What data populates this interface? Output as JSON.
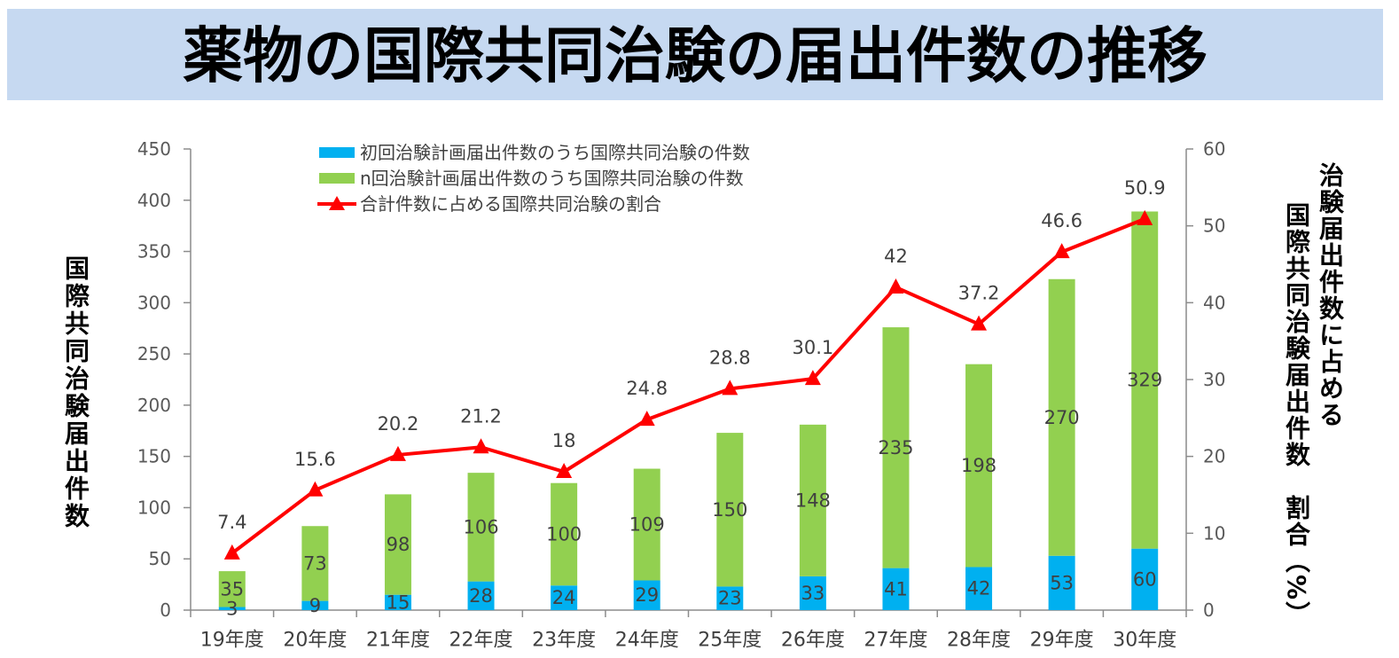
{
  "chart_data": {
    "type": "bar",
    "stacked": true,
    "title": "薬物の国際共同治験の届出件数の推移",
    "categories": [
      "19年度",
      "20年度",
      "21年度",
      "22年度",
      "23年度",
      "24年度",
      "25年度",
      "26年度",
      "27年度",
      "28年度",
      "29年度",
      "30年度"
    ],
    "series": [
      {
        "name": "初回治験計画届出件数のうち国際共同治験の件数",
        "type": "bar",
        "axis": "left",
        "color": "#00b0f0",
        "values": [
          3,
          9,
          15,
          28,
          24,
          29,
          23,
          33,
          41,
          42,
          53,
          60
        ]
      },
      {
        "name": "n回治験計画届出件数のうち国際共同治験の件数",
        "type": "bar",
        "axis": "left",
        "color": "#92d050",
        "values": [
          35,
          73,
          98,
          106,
          100,
          109,
          150,
          148,
          235,
          198,
          270,
          329
        ]
      },
      {
        "name": "合計件数に占める国際共同治験の割合",
        "type": "line",
        "axis": "right",
        "color": "#ff0000",
        "values": [
          7.4,
          15.6,
          20.2,
          21.2,
          18,
          24.8,
          28.8,
          30.1,
          42,
          37.2,
          46.6,
          50.9
        ]
      }
    ],
    "ylabel": "国際共同治験届出件数",
    "y2label_lines": [
      "治験届出件数に占める",
      "国際共同治験届出件数　割合（%）"
    ],
    "ylim": [
      0,
      450
    ],
    "yticks": [
      0,
      50,
      100,
      150,
      200,
      250,
      300,
      350,
      400,
      450
    ],
    "y2lim": [
      0,
      60
    ],
    "y2ticks": [
      0,
      10,
      20,
      30,
      40,
      50,
      60
    ],
    "legend": "top-left",
    "grid": false
  },
  "colors": {
    "banner": "#c6d9f1",
    "axis": "#8c8c8c",
    "label_text": "#404040",
    "tick_text": "#595959"
  }
}
